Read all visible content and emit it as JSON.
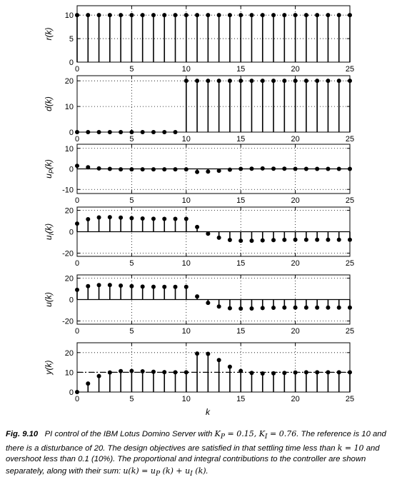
{
  "chart_data": [
    {
      "type": "stem",
      "ylabel": "r(k)",
      "xlim": [
        0,
        25
      ],
      "ylim": [
        0,
        12
      ],
      "yticks": [
        0,
        5,
        10
      ],
      "xticks": [
        0,
        5,
        10,
        15,
        20,
        25
      ],
      "grid": "dotted",
      "x": [
        0,
        1,
        2,
        3,
        4,
        5,
        6,
        7,
        8,
        9,
        10,
        11,
        12,
        13,
        14,
        15,
        16,
        17,
        18,
        19,
        20,
        21,
        22,
        23,
        24,
        25
      ],
      "values": [
        10,
        10,
        10,
        10,
        10,
        10,
        10,
        10,
        10,
        10,
        10,
        10,
        10,
        10,
        10,
        10,
        10,
        10,
        10,
        10,
        10,
        10,
        10,
        10,
        10,
        10
      ]
    },
    {
      "type": "stem",
      "ylabel": "d(k)",
      "xlim": [
        0,
        25
      ],
      "ylim": [
        0,
        22
      ],
      "yticks": [
        0,
        10,
        20
      ],
      "xticks": [
        0,
        5,
        10,
        15,
        20,
        25
      ],
      "grid": "dotted",
      "x": [
        0,
        1,
        2,
        3,
        4,
        5,
        6,
        7,
        8,
        9,
        10,
        11,
        12,
        13,
        14,
        15,
        16,
        17,
        18,
        19,
        20,
        21,
        22,
        23,
        24,
        25
      ],
      "values": [
        0,
        0,
        0,
        0,
        0,
        0,
        0,
        0,
        0,
        0,
        20,
        20,
        20,
        20,
        20,
        20,
        20,
        20,
        20,
        20,
        20,
        20,
        20,
        20,
        20,
        20
      ]
    },
    {
      "type": "stem",
      "ylabel": "u_P(k)",
      "xlim": [
        0,
        25
      ],
      "ylim": [
        -12,
        12
      ],
      "yticks": [
        -10,
        0,
        10
      ],
      "xticks": [
        0,
        5,
        10,
        15,
        20,
        25
      ],
      "grid": "dotted",
      "x": [
        0,
        1,
        2,
        3,
        4,
        5,
        6,
        7,
        8,
        9,
        10,
        11,
        12,
        13,
        14,
        15,
        16,
        17,
        18,
        19,
        20,
        21,
        22,
        23,
        24,
        25
      ],
      "values": [
        1.5,
        0.8,
        0.2,
        0,
        -0.2,
        -0.2,
        -0.2,
        -0.2,
        -0.2,
        -0.2,
        -0.2,
        -1.5,
        -1.3,
        -0.9,
        -0.4,
        0,
        0.1,
        0.2,
        0.1,
        0.1,
        0,
        0,
        0,
        0,
        0,
        0
      ]
    },
    {
      "type": "stem",
      "ylabel": "u_I(k)",
      "xlim": [
        0,
        25
      ],
      "ylim": [
        -23,
        23
      ],
      "yticks": [
        -20,
        0,
        20
      ],
      "xticks": [
        0,
        5,
        10,
        15,
        20,
        25
      ],
      "grid": "dotted",
      "x": [
        0,
        1,
        2,
        3,
        4,
        5,
        6,
        7,
        8,
        9,
        10,
        11,
        12,
        13,
        14,
        15,
        16,
        17,
        18,
        19,
        20,
        21,
        22,
        23,
        24,
        25
      ],
      "values": [
        7.6,
        11.7,
        13.3,
        13.6,
        13.2,
        12.7,
        12.3,
        12.1,
        12.0,
        12.0,
        12.0,
        4.4,
        -1.8,
        -5.6,
        -7.7,
        -8.4,
        -8.4,
        -8.1,
        -7.8,
        -7.6,
        -7.5,
        -7.5,
        -7.5,
        -7.5,
        -7.5,
        -7.5
      ]
    },
    {
      "type": "stem",
      "ylabel": "u(k)",
      "xlim": [
        0,
        25
      ],
      "ylim": [
        -23,
        23
      ],
      "yticks": [
        -20,
        0,
        20
      ],
      "xticks": [
        0,
        5,
        10,
        15,
        20,
        25
      ],
      "grid": "dotted",
      "x": [
        0,
        1,
        2,
        3,
        4,
        5,
        6,
        7,
        8,
        9,
        10,
        11,
        12,
        13,
        14,
        15,
        16,
        17,
        18,
        19,
        20,
        21,
        22,
        23,
        24,
        25
      ],
      "values": [
        9.1,
        12.5,
        13.5,
        13.6,
        13.0,
        12.5,
        12.1,
        11.9,
        11.8,
        11.8,
        11.8,
        2.9,
        -3.1,
        -6.5,
        -8.1,
        -8.4,
        -8.3,
        -7.9,
        -7.7,
        -7.5,
        -7.5,
        -7.5,
        -7.5,
        -7.5,
        -7.5,
        -7.5
      ]
    },
    {
      "type": "stem",
      "ylabel": "y(k)",
      "xlabel": "k",
      "xlim": [
        0,
        25
      ],
      "ylim": [
        0,
        25
      ],
      "yticks": [
        0,
        10,
        20
      ],
      "xticks": [
        0,
        5,
        10,
        15,
        20,
        25
      ],
      "grid": "dotted",
      "reference_line": 10,
      "x": [
        0,
        1,
        2,
        3,
        4,
        5,
        6,
        7,
        8,
        9,
        10,
        11,
        12,
        13,
        14,
        15,
        16,
        17,
        18,
        19,
        20,
        21,
        22,
        23,
        24,
        25
      ],
      "values": [
        0,
        4.3,
        8.1,
        9.9,
        10.6,
        10.7,
        10.5,
        10.3,
        10.1,
        10.0,
        10.0,
        19.5,
        19.4,
        16.2,
        12.8,
        10.7,
        9.7,
        9.4,
        9.5,
        9.7,
        9.9,
        10.0,
        10.0,
        10.0,
        10.0,
        10.0
      ]
    }
  ],
  "caption": {
    "label": "Fig. 9.10",
    "text_1": "PI control of the IBM Lotus Domino Server with ",
    "math_1": "K",
    "math_1_sub": "P",
    "math_1_val": " = 0.15, ",
    "math_2": "K",
    "math_2_sub": "I",
    "math_2_val": " = 0.76",
    "text_2": ". The reference is 10 and there is a disturbance of 20. The design objectives are satisfied in that settling time less than ",
    "math_3": "k = 10",
    "text_3": " and overshoot less than 0.1 (10%). The proportional and integral contributions to the controller are shown separately, along with their sum: ",
    "math_4": "u(k) = u",
    "math_4_sub1": "P",
    "math_4_mid": " (k) + u",
    "math_4_sub2": "I",
    "math_4_end": " (k)",
    "text_4": "."
  }
}
